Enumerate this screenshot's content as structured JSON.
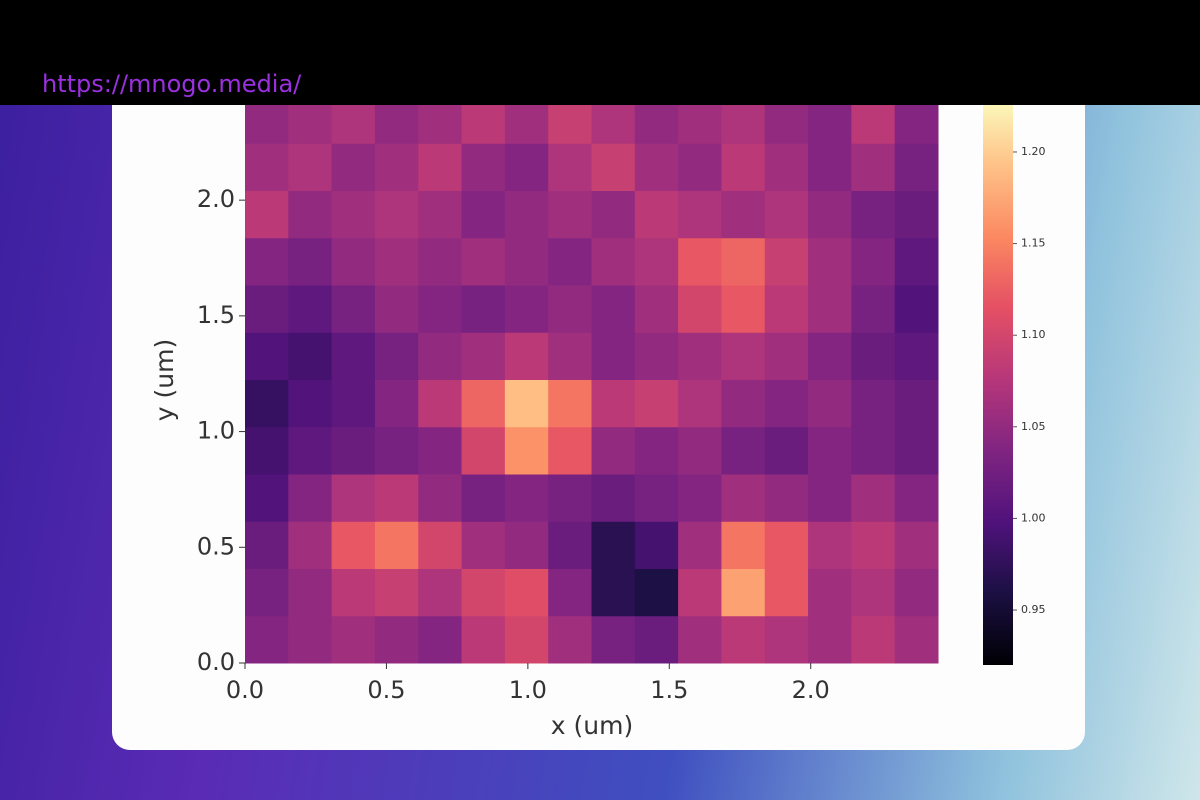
{
  "url": "https://mnogo.media/",
  "chart_data": {
    "type": "heatmap",
    "xlabel": "x (um)",
    "ylabel": "y (um)",
    "xlim": [
      0,
      2.45
    ],
    "ylim": [
      0,
      2.45
    ],
    "xticks": [
      {
        "value": 0,
        "label": "0.0"
      },
      0.5,
      {
        "value": 1,
        "label": "1.0"
      },
      1.5,
      {
        "value": 2,
        "label": "2.0"
      }
    ],
    "yticks": [
      {
        "value": 0,
        "label": "0.0"
      },
      0.5,
      {
        "value": 1,
        "label": "1.0"
      },
      1.5,
      {
        "value": 2,
        "label": "2.0"
      }
    ],
    "colormap": "magma",
    "clim": [
      0.92,
      1.23
    ],
    "cticks": [
      0.95,
      {
        "value": 1,
        "label": "1.00"
      },
      1.05,
      {
        "value": 1.1,
        "label": "1.10"
      },
      1.15,
      {
        "value": 1.2,
        "label": "1.20"
      }
    ],
    "z": [
      [
        1.04,
        1.05,
        1.06,
        1.05,
        1.04,
        1.08,
        1.1,
        1.06,
        1.03,
        1.02,
        1.06,
        1.08,
        1.07,
        1.06,
        1.08,
        1.06
      ],
      [
        1.03,
        1.05,
        1.08,
        1.09,
        1.07,
        1.1,
        1.11,
        1.04,
        0.97,
        0.96,
        1.08,
        1.17,
        1.12,
        1.06,
        1.07,
        1.05
      ],
      [
        1.02,
        1.06,
        1.12,
        1.14,
        1.1,
        1.06,
        1.05,
        1.02,
        0.97,
        0.99,
        1.06,
        1.14,
        1.12,
        1.07,
        1.08,
        1.06
      ],
      [
        1.0,
        1.04,
        1.07,
        1.08,
        1.05,
        1.03,
        1.04,
        1.03,
        1.02,
        1.03,
        1.04,
        1.06,
        1.05,
        1.04,
        1.06,
        1.04
      ],
      [
        0.99,
        1.01,
        1.02,
        1.03,
        1.04,
        1.1,
        1.16,
        1.12,
        1.05,
        1.04,
        1.05,
        1.03,
        1.02,
        1.04,
        1.03,
        1.02
      ],
      [
        0.98,
        1.0,
        1.01,
        1.04,
        1.08,
        1.13,
        1.19,
        1.14,
        1.08,
        1.09,
        1.07,
        1.05,
        1.04,
        1.05,
        1.03,
        1.02
      ],
      [
        1.0,
        0.99,
        1.01,
        1.03,
        1.05,
        1.06,
        1.08,
        1.06,
        1.04,
        1.05,
        1.06,
        1.07,
        1.06,
        1.04,
        1.02,
        1.01
      ],
      [
        1.02,
        1.01,
        1.03,
        1.05,
        1.04,
        1.03,
        1.04,
        1.05,
        1.04,
        1.06,
        1.1,
        1.12,
        1.08,
        1.06,
        1.03,
        1.0
      ],
      [
        1.04,
        1.03,
        1.05,
        1.06,
        1.05,
        1.06,
        1.05,
        1.04,
        1.06,
        1.07,
        1.12,
        1.13,
        1.09,
        1.06,
        1.04,
        1.01
      ],
      [
        1.08,
        1.05,
        1.06,
        1.07,
        1.06,
        1.04,
        1.05,
        1.06,
        1.05,
        1.08,
        1.07,
        1.06,
        1.07,
        1.05,
        1.03,
        1.02
      ],
      [
        1.06,
        1.07,
        1.05,
        1.06,
        1.08,
        1.05,
        1.04,
        1.07,
        1.09,
        1.06,
        1.05,
        1.08,
        1.06,
        1.04,
        1.06,
        1.03
      ],
      [
        1.05,
        1.06,
        1.07,
        1.05,
        1.06,
        1.08,
        1.06,
        1.09,
        1.07,
        1.05,
        1.06,
        1.07,
        1.05,
        1.04,
        1.08,
        1.04
      ]
    ]
  }
}
